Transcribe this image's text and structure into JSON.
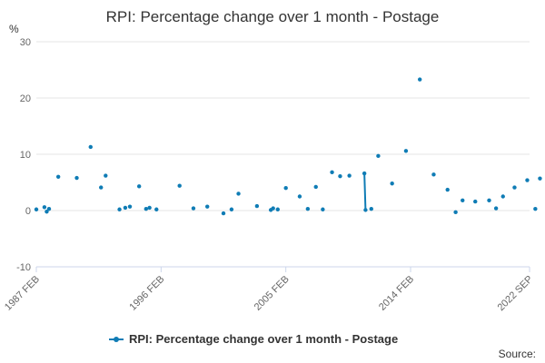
{
  "chart_data": {
    "type": "line",
    "title": "RPI: Percentage change over 1 month - Postage",
    "ylabel": "%",
    "ylim": [
      -10,
      30
    ],
    "yticks": [
      -10,
      0,
      10,
      20,
      30
    ],
    "xlim": [
      "1987-02",
      "2022-09"
    ],
    "xticks": [
      "1987 FEB",
      "1996 FEB",
      "2005 FEB",
      "2014 FEB",
      "2022 SEP"
    ],
    "grid": true,
    "legend": "bottom-center",
    "series": [
      {
        "name": "RPI: Percentage change over 1 month - Postage",
        "color": "#0f7cb5",
        "points": [
          [
            "1987-02",
            0.2
          ],
          [
            "1987-09",
            0.6
          ],
          [
            "1987-11",
            -0.2
          ],
          [
            "1988-01",
            0.3
          ],
          [
            "1988-09",
            6.0
          ],
          [
            "1990-01",
            5.8
          ],
          [
            "1991-01",
            11.3
          ],
          [
            "1991-10",
            4.1
          ],
          [
            "1992-02",
            6.2
          ],
          [
            "1993-02",
            0.2
          ],
          [
            "1993-07",
            0.5
          ],
          [
            "1993-11",
            0.7
          ],
          [
            "1994-07",
            4.3
          ],
          [
            "1995-01",
            0.3
          ],
          [
            "1995-04",
            0.5
          ],
          [
            "1995-10",
            0.2
          ],
          [
            "1997-06",
            4.4
          ],
          [
            "1998-06",
            0.4
          ],
          [
            "1999-06",
            0.7
          ],
          [
            "2000-08",
            -0.5
          ],
          [
            "2001-03",
            0.2
          ],
          [
            "2001-09",
            3.0
          ],
          [
            "2003-01",
            0.8
          ],
          [
            "2004-01",
            0.1
          ],
          [
            "2004-03",
            0.4
          ],
          [
            "2004-07",
            0.2
          ],
          [
            "2005-02",
            4.0
          ],
          [
            "2006-02",
            2.5
          ],
          [
            "2006-09",
            0.3
          ],
          [
            "2007-04",
            4.2
          ],
          [
            "2007-10",
            0.2
          ],
          [
            "2008-06",
            6.8
          ],
          [
            "2009-01",
            6.1
          ],
          [
            "2009-09",
            6.2
          ],
          [
            "2010-10",
            6.6
          ],
          [
            "2010-11",
            0.1
          ],
          [
            "2011-04",
            0.3
          ],
          [
            "2011-10",
            9.7
          ],
          [
            "2012-10",
            4.8
          ],
          [
            "2013-10",
            10.6
          ],
          [
            "2014-10",
            23.3
          ],
          [
            "2015-10",
            6.4
          ],
          [
            "2016-10",
            3.7
          ],
          [
            "2017-05",
            -0.3
          ],
          [
            "2017-11",
            1.8
          ],
          [
            "2018-10",
            1.6
          ],
          [
            "2019-10",
            1.8
          ],
          [
            "2020-04",
            0.4
          ],
          [
            "2020-10",
            2.5
          ],
          [
            "2021-08",
            4.1
          ],
          [
            "2022-07",
            5.4
          ],
          [
            "2023-02",
            0.3
          ],
          [
            "2023-06",
            5.7
          ],
          [
            "2024-10",
            5.6
          ]
        ],
        "connected_pairs": [
          [
            34,
            35
          ]
        ]
      }
    ]
  },
  "footer": {
    "source_label": "Source:"
  }
}
